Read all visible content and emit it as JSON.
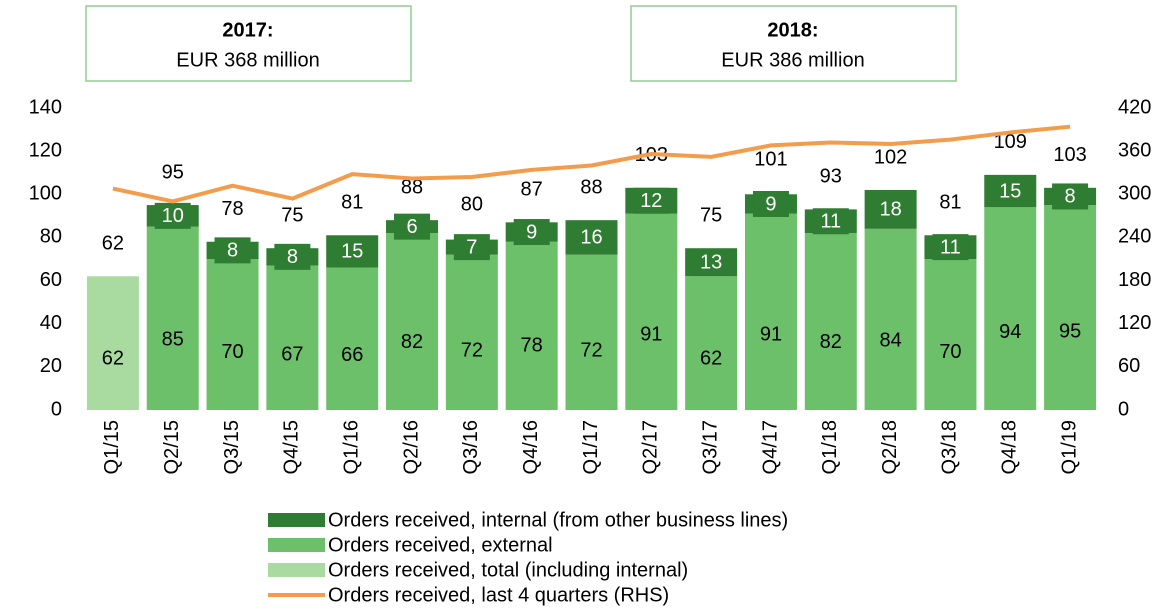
{
  "chart_data": {
    "type": "bar",
    "annotations": [
      {
        "title": "2017:",
        "text": "EUR 368 million"
      },
      {
        "title": "2018:",
        "text": "EUR 386 million"
      }
    ],
    "categories": [
      "Q1/15",
      "Q2/15",
      "Q3/15",
      "Q4/15",
      "Q1/16",
      "Q2/16",
      "Q3/16",
      "Q4/16",
      "Q1/17",
      "Q2/17",
      "Q3/17",
      "Q4/17",
      "Q1/18",
      "Q2/18",
      "Q3/18",
      "Q4/18",
      "Q1/19"
    ],
    "series": [
      {
        "name": "Orders received, internal (from other business lines)",
        "color": "#2f7d32",
        "type": "bar",
        "values": [
          null,
          10,
          8,
          8,
          15,
          6,
          7,
          9,
          16,
          12,
          13,
          9,
          11,
          18,
          11,
          15,
          8
        ]
      },
      {
        "name": "Orders received, external",
        "color": "#6cc06a",
        "type": "bar",
        "values": [
          null,
          85,
          70,
          67,
          66,
          82,
          72,
          78,
          72,
          91,
          62,
          91,
          82,
          84,
          70,
          94,
          95
        ]
      },
      {
        "name": "Orders received, total (including internal)",
        "color": "#a9dba1",
        "type": "bar",
        "values": [
          62,
          null,
          null,
          null,
          null,
          null,
          null,
          null,
          null,
          null,
          null,
          null,
          null,
          null,
          null,
          null,
          null
        ]
      },
      {
        "name": "Orders received, last 4 quarters (RHS)",
        "color": "#f39c4b",
        "type": "line",
        "axis": "y2",
        "values": [
          308,
          290,
          312,
          294,
          328,
          322,
          324,
          334,
          340,
          356,
          352,
          368,
          372,
          370,
          376,
          386,
          394
        ]
      }
    ],
    "totals": [
      62,
      95,
      78,
      75,
      81,
      88,
      80,
      87,
      88,
      103,
      75,
      101,
      93,
      102,
      81,
      109,
      103
    ],
    "ylim": [
      0,
      140
    ],
    "yticks": [
      0,
      20,
      40,
      60,
      80,
      100,
      120,
      140
    ],
    "y2lim": [
      0,
      420
    ],
    "y2ticks": [
      0,
      60,
      120,
      180,
      240,
      300,
      360,
      420
    ],
    "grid": false
  }
}
